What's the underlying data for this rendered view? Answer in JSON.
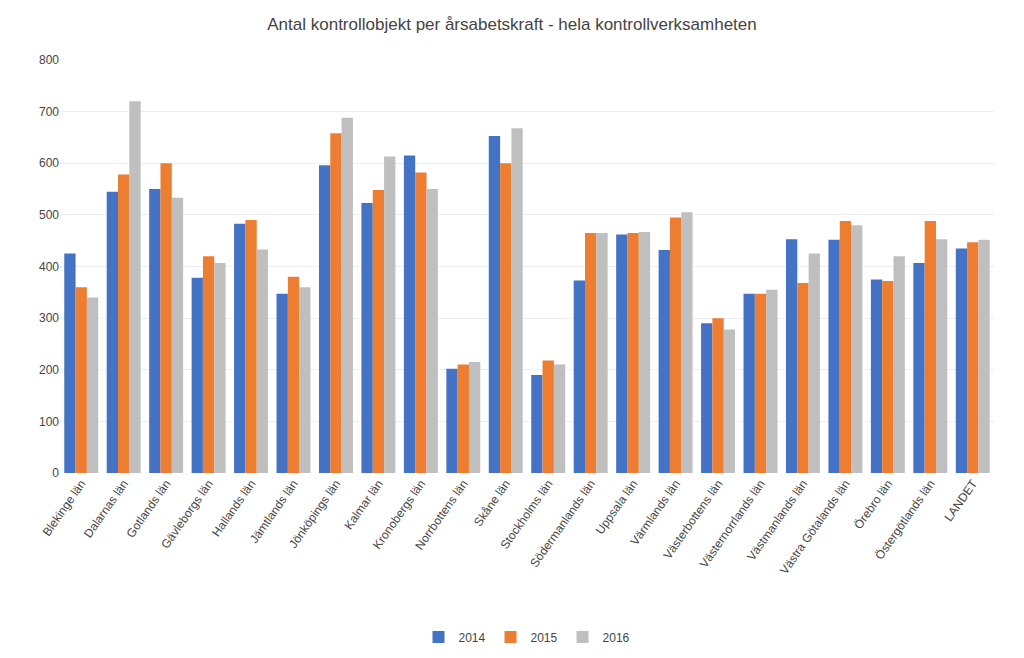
{
  "chart_data": {
    "type": "bar",
    "title": "Antal kontrollobjekt per årsabetskraft - hela kontrollverksamheten",
    "categories": [
      "Blekinge län",
      "Dalarnas län",
      "Gotlands län",
      "Gävleborgs län",
      "Hallands län",
      "Jämtlands län",
      "Jönköpings län",
      "Kalmar län",
      "Kronobergs län",
      "Norrbottens län",
      "Skåne län",
      "Stockholms län",
      "Södermanlands län",
      "Uppsala län",
      "Värmlands län",
      "Västerbottens län",
      "Västernorrlands län",
      "Västmanlands län",
      "Västra Götalands län",
      "Örebro län",
      "Östergötlands län",
      "LANDET"
    ],
    "series": [
      {
        "name": "2014",
        "color": "#4472C4",
        "values": [
          425,
          545,
          550,
          378,
          483,
          347,
          596,
          523,
          615,
          202,
          653,
          190,
          373,
          462,
          432,
          290,
          347,
          453,
          452,
          375,
          407,
          435
        ]
      },
      {
        "name": "2015",
        "color": "#ED7D31",
        "values": [
          360,
          578,
          600,
          420,
          490,
          380,
          658,
          548,
          582,
          210,
          600,
          218,
          465,
          465,
          495,
          300,
          347,
          368,
          488,
          372,
          488,
          447
        ]
      },
      {
        "name": "2016",
        "color": "#BFBFBF",
        "values": [
          340,
          720,
          533,
          407,
          433,
          360,
          688,
          613,
          550,
          215,
          668,
          210,
          465,
          467,
          505,
          278,
          355,
          425,
          480,
          420,
          453,
          452
        ]
      }
    ],
    "ylim": [
      0,
      800
    ],
    "yticks": [
      0,
      100,
      200,
      300,
      400,
      500,
      600,
      700,
      800
    ],
    "grid": true,
    "legend": "bottom"
  }
}
